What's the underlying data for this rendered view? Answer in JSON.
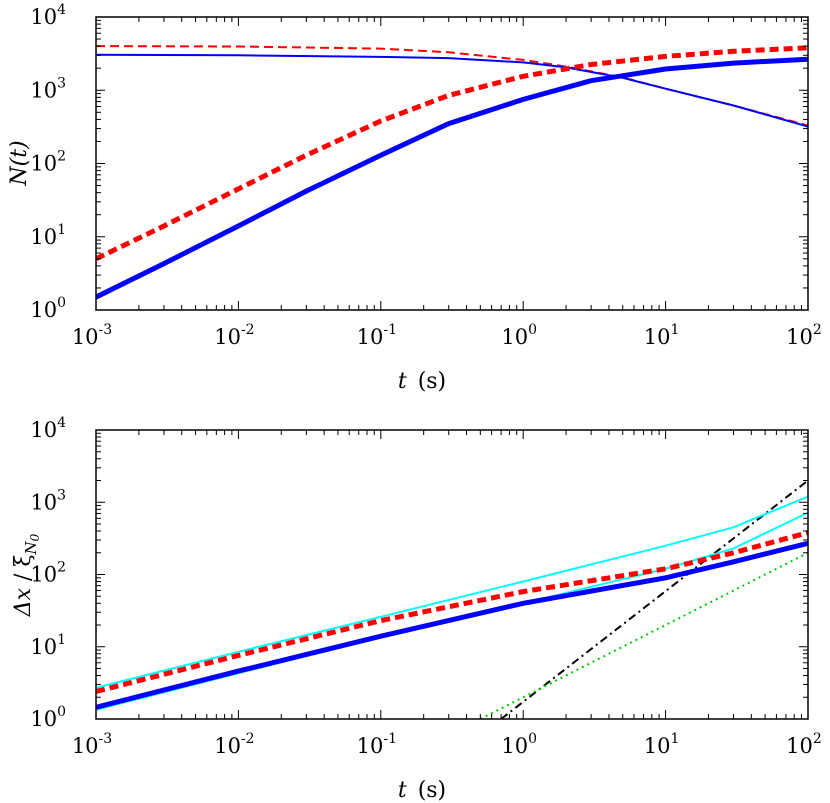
{
  "chart_data": [
    {
      "type": "line",
      "xscale": "log",
      "yscale": "log",
      "xlim": [
        0.001,
        100
      ],
      "ylim": [
        1,
        10000
      ],
      "xlabel": {
        "var": "t",
        "unit": "(s)"
      },
      "ylabel": {
        "text": "N(t)"
      },
      "xticks": [
        {
          "value": 0.001,
          "base": "10",
          "exp": "-3"
        },
        {
          "value": 0.01,
          "base": "10",
          "exp": "-2"
        },
        {
          "value": 0.1,
          "base": "10",
          "exp": "-1"
        },
        {
          "value": 1,
          "base": "10",
          "exp": "0"
        },
        {
          "value": 10,
          "base": "10",
          "exp": "1"
        },
        {
          "value": 100,
          "base": "10",
          "exp": "2"
        }
      ],
      "yticks": [
        {
          "value": 1,
          "base": "10",
          "exp": "0"
        },
        {
          "value": 10,
          "base": "10",
          "exp": "1"
        },
        {
          "value": 100,
          "base": "10",
          "exp": "2"
        },
        {
          "value": 1000,
          "base": "10",
          "exp": "3"
        },
        {
          "value": 10000,
          "base": "10",
          "exp": "4"
        }
      ],
      "grid": false,
      "legend": "none",
      "series": [
        {
          "color": "#ff0000",
          "style": "dashed",
          "weight": "thin",
          "x": [
            0.001,
            0.01,
            0.1,
            0.3,
            1,
            2,
            5,
            10,
            30,
            100
          ],
          "y": [
            4000,
            3950,
            3700,
            3300,
            2600,
            2100,
            1500,
            1050,
            620,
            330
          ]
        },
        {
          "color": "#0000ff",
          "style": "solid",
          "weight": "thin",
          "x": [
            0.001,
            0.01,
            0.1,
            0.3,
            1,
            2,
            5,
            10,
            30,
            100
          ],
          "y": [
            3050,
            3000,
            2850,
            2750,
            2400,
            2050,
            1480,
            1050,
            620,
            320
          ]
        },
        {
          "color": "#ff0000",
          "style": "dashed",
          "weight": "thick",
          "x": [
            0.001,
            0.003,
            0.01,
            0.03,
            0.1,
            0.3,
            1,
            3,
            10,
            30,
            100
          ],
          "y": [
            5,
            14,
            45,
            130,
            380,
            850,
            1550,
            2250,
            2900,
            3400,
            3800
          ]
        },
        {
          "color": "#0000ff",
          "style": "solid",
          "weight": "thick",
          "x": [
            0.001,
            0.003,
            0.01,
            0.03,
            0.1,
            0.3,
            1,
            3,
            10,
            30,
            100
          ],
          "y": [
            1.5,
            4.3,
            14,
            42,
            130,
            350,
            750,
            1350,
            1950,
            2350,
            2650
          ]
        }
      ]
    },
    {
      "type": "line",
      "xscale": "log",
      "yscale": "log",
      "xlim": [
        0.001,
        100
      ],
      "ylim": [
        1,
        10000
      ],
      "xlabel": {
        "var": "t",
        "unit": "(s)"
      },
      "ylabel": {
        "delta": "Δx",
        "sep": " / ",
        "xi": "ξ",
        "sub": "N",
        "subsub": "0"
      },
      "xticks": [
        {
          "value": 0.001,
          "base": "10",
          "exp": "-3"
        },
        {
          "value": 0.01,
          "base": "10",
          "exp": "-2"
        },
        {
          "value": 0.1,
          "base": "10",
          "exp": "-1"
        },
        {
          "value": 1,
          "base": "10",
          "exp": "0"
        },
        {
          "value": 10,
          "base": "10",
          "exp": "1"
        },
        {
          "value": 100,
          "base": "10",
          "exp": "2"
        }
      ],
      "yticks": [
        {
          "value": 1,
          "base": "10",
          "exp": "0"
        },
        {
          "value": 10,
          "base": "10",
          "exp": "1"
        },
        {
          "value": 100,
          "base": "10",
          "exp": "2"
        },
        {
          "value": 1000,
          "base": "10",
          "exp": "3"
        },
        {
          "value": 10000,
          "base": "10",
          "exp": "4"
        }
      ],
      "grid": false,
      "legend": "none",
      "series": [
        {
          "color": "#000000",
          "style": "dashdot",
          "weight": "thin",
          "x": [
            0.7,
            100
          ],
          "y": [
            1,
            2000
          ]
        },
        {
          "color": "#00cc00",
          "style": "dotted",
          "weight": "thin",
          "x": [
            0.5,
            100
          ],
          "y": [
            1,
            200
          ]
        },
        {
          "color": "#00ffff",
          "style": "solid",
          "weight": "thin",
          "x": [
            0.001,
            0.01,
            0.1,
            1,
            10,
            30,
            100
          ],
          "y": [
            2.7,
            8.5,
            26,
            80,
            250,
            450,
            1200
          ]
        },
        {
          "color": "#00ffff",
          "style": "solid",
          "weight": "thin",
          "x": [
            0.001,
            0.01,
            0.1,
            1,
            10,
            30,
            100
          ],
          "y": [
            1.35,
            4.3,
            13.5,
            40,
            120,
            230,
            720
          ]
        },
        {
          "color": "#ff0000",
          "style": "dashed",
          "weight": "thick",
          "x": [
            0.001,
            0.01,
            0.1,
            1,
            10,
            30,
            100
          ],
          "y": [
            2.4,
            7.6,
            23,
            58,
            120,
            200,
            380
          ]
        },
        {
          "color": "#0000ff",
          "style": "solid",
          "weight": "thick",
          "x": [
            0.001,
            0.01,
            0.1,
            1,
            10,
            30,
            100
          ],
          "y": [
            1.45,
            4.6,
            14,
            40,
            90,
            150,
            270
          ]
        }
      ]
    }
  ]
}
